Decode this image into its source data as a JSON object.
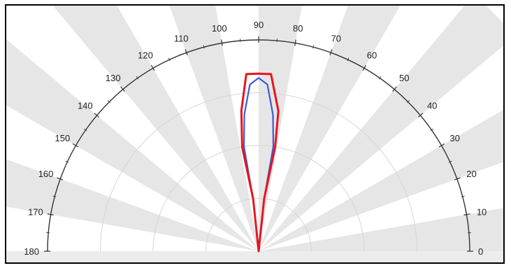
{
  "chart_data": {
    "type": "polar",
    "title": "",
    "angle_range_deg": [
      0,
      180
    ],
    "angle_tick_step_deg": 10,
    "angle_ticks": [
      "0",
      "10",
      "20",
      "30",
      "40",
      "50",
      "60",
      "70",
      "80",
      "90",
      "100",
      "110",
      "120",
      "130",
      "140",
      "150",
      "160",
      "170",
      "180"
    ],
    "radial_max": 1,
    "radial_grid": [
      0.25,
      0.5,
      0.75,
      1.0
    ],
    "alternating_sector_shading": true,
    "series": [
      {
        "color": "#3b5bd6",
        "points": [
          {
            "angle": 90,
            "r": 0
          },
          {
            "angle": 84,
            "r": 0.25
          },
          {
            "angle": 82,
            "r": 0.5
          },
          {
            "angle": 84,
            "r": 0.65
          },
          {
            "angle": 87,
            "r": 0.79
          },
          {
            "angle": 90,
            "r": 0.82
          },
          {
            "angle": 93,
            "r": 0.79
          },
          {
            "angle": 96,
            "r": 0.65
          },
          {
            "angle": 98,
            "r": 0.5
          },
          {
            "angle": 96,
            "r": 0.25
          },
          {
            "angle": 90,
            "r": 0
          }
        ]
      },
      {
        "color": "#e8141e",
        "points": [
          {
            "angle": 90,
            "r": 0
          },
          {
            "angle": 84,
            "r": 0.25
          },
          {
            "angle": 81,
            "r": 0.5
          },
          {
            "angle": 82,
            "r": 0.67
          },
          {
            "angle": 86,
            "r": 0.84
          },
          {
            "angle": 90,
            "r": 0.84
          },
          {
            "angle": 94,
            "r": 0.84
          },
          {
            "angle": 97,
            "r": 0.67
          },
          {
            "angle": 99,
            "r": 0.5
          },
          {
            "angle": 96,
            "r": 0.25
          },
          {
            "angle": 90,
            "r": 0
          }
        ]
      }
    ],
    "colors": {
      "sector_fill": "#e6e6e6",
      "grid": "#d6d6d6",
      "axis": "#333333"
    }
  }
}
